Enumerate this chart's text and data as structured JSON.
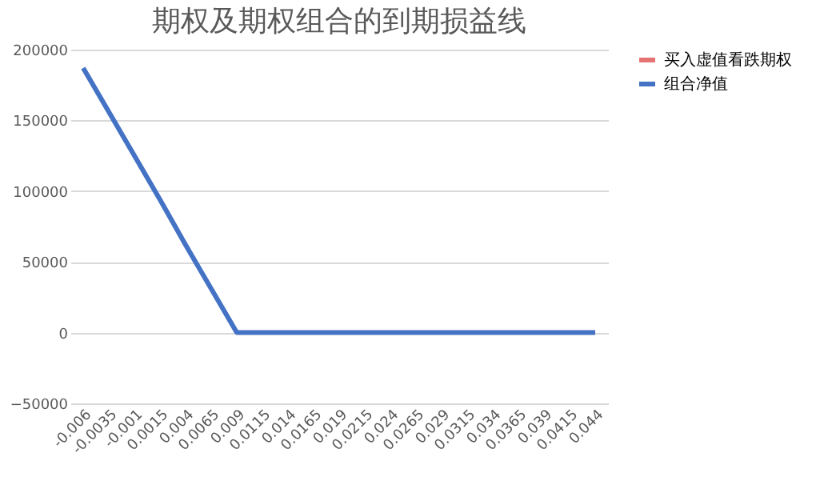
{
  "chart_data": {
    "type": "line",
    "title": "期权及期权组合的到期损益线",
    "categories": [
      "-0.006",
      "-0.0035",
      "-0.001",
      "0.0015",
      "0.004",
      "0.0065",
      "0.009",
      "0.0115",
      "0.014",
      "0.0165",
      "0.019",
      "0.0215",
      "0.024",
      "0.0265",
      "0.029",
      "0.0315",
      "0.034",
      "0.0365",
      "0.039",
      "0.0415",
      "0.044"
    ],
    "series": [
      {
        "name": "买入虚值看跌期权",
        "color": "#e57373",
        "values": [
          null,
          null,
          null,
          null,
          null,
          null,
          null,
          null,
          null,
          null,
          null,
          null,
          null,
          null,
          null,
          null,
          null,
          null,
          null,
          null,
          null
        ]
      },
      {
        "name": "组合净值",
        "color": "#4472c4",
        "values": [
          187000,
          156000,
          125000,
          94000,
          62000,
          31000,
          0,
          0,
          0,
          0,
          0,
          0,
          0,
          0,
          0,
          0,
          0,
          0,
          0,
          0,
          0
        ]
      }
    ],
    "ylim": [
      -50000,
      200000
    ],
    "yticks": [
      -50000,
      0,
      50000,
      100000,
      150000,
      200000
    ],
    "grid": "y",
    "legend": "right",
    "marker": "none",
    "line_style": "solid"
  }
}
